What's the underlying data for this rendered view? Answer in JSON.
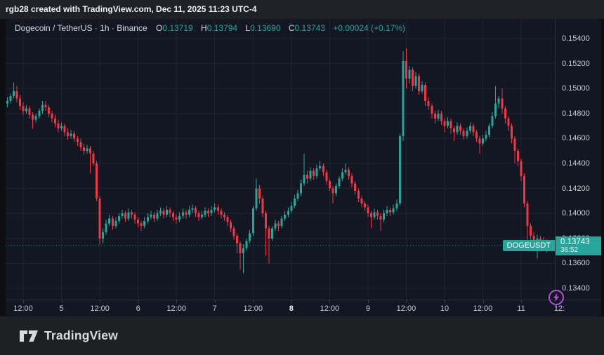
{
  "banner": {
    "text": "rgb28 created with TradingView.com, Dec 11, 2025 11:23 UTC-4"
  },
  "header": {
    "symbol": "Dogecoin / TetherUS",
    "dot": "·",
    "interval": "1h",
    "exchange": "Binance",
    "o_label": "O",
    "o": "0.13719",
    "h_label": "H",
    "h": "0.13794",
    "l_label": "L",
    "l": "0.13690",
    "c_label": "C",
    "c": "0.13743",
    "change": "+0.00024 (+0.17%)"
  },
  "price_line": {
    "label": "DOGEUSDT",
    "value": 0.13743
  },
  "price_scale": {
    "labels": [
      {
        "text": "0.15400",
        "value": 0.154
      },
      {
        "text": "0.15200",
        "value": 0.152
      },
      {
        "text": "0.15000",
        "value": 0.15
      },
      {
        "text": "0.14800",
        "value": 0.148
      },
      {
        "text": "0.14600",
        "value": 0.146
      },
      {
        "text": "0.14400",
        "value": 0.144
      },
      {
        "text": "0.14200",
        "value": 0.142
      },
      {
        "text": "0.14000",
        "value": 0.14
      },
      {
        "text": "0.13800",
        "value": 0.138
      },
      {
        "text": "0.13600",
        "value": 0.136
      },
      {
        "text": "0.13400",
        "value": 0.134
      }
    ],
    "current": {
      "price": "0.13743",
      "countdown": "36:52"
    }
  },
  "time_scale": {
    "labels": [
      {
        "text": "12:00",
        "idx": 5,
        "bold": false
      },
      {
        "text": "5",
        "idx": 17,
        "bold": false
      },
      {
        "text": "12:00",
        "idx": 29,
        "bold": false
      },
      {
        "text": "6",
        "idx": 41,
        "bold": false
      },
      {
        "text": "12:00",
        "idx": 53,
        "bold": false
      },
      {
        "text": "7",
        "idx": 65,
        "bold": false
      },
      {
        "text": "12:00",
        "idx": 77,
        "bold": false
      },
      {
        "text": "8",
        "idx": 89,
        "bold": true
      },
      {
        "text": "12:00",
        "idx": 101,
        "bold": false
      },
      {
        "text": "9",
        "idx": 113,
        "bold": false
      },
      {
        "text": "12:00",
        "idx": 125,
        "bold": false
      },
      {
        "text": "10",
        "idx": 137,
        "bold": false
      },
      {
        "text": "12:00",
        "idx": 149,
        "bold": false
      },
      {
        "text": "11",
        "idx": 161,
        "bold": false
      },
      {
        "text": "12:",
        "idx": 173,
        "bold": false
      }
    ]
  },
  "footer": {
    "brand": "TradingView"
  },
  "colors": {
    "up": "#26a69a",
    "down": "#f23645",
    "accent": "#26a69a",
    "flash": "#b44ce0",
    "grid": "#1e2532"
  },
  "chart_data": {
    "type": "candlestick",
    "title": "Dogecoin / TetherUS",
    "symbol": "DOGEUSDT",
    "interval": "1h",
    "exchange": "Binance",
    "last": {
      "open": 0.13719,
      "high": 0.13794,
      "low": 0.1369,
      "close": 0.13743,
      "change": "+0.00024 (+0.17%)"
    },
    "ylim": [
      0.134,
      0.154
    ],
    "y_ticks": [
      0.154,
      0.152,
      0.15,
      0.148,
      0.146,
      0.144,
      0.142,
      0.14,
      0.138,
      0.136,
      0.134
    ],
    "x_tick_labels": [
      "12:00",
      "5",
      "12:00",
      "6",
      "12:00",
      "7",
      "12:00",
      "8",
      "12:00",
      "9",
      "12:00",
      "10",
      "12:00",
      "11",
      "12:"
    ],
    "current_price": 0.13743,
    "countdown": "36:52",
    "candles": [
      [
        0.1488,
        0.1493,
        0.1485,
        0.149
      ],
      [
        0.149,
        0.1496,
        0.1488,
        0.1494
      ],
      [
        0.1494,
        0.1505,
        0.1492,
        0.1498
      ],
      [
        0.1498,
        0.1502,
        0.1489,
        0.1492
      ],
      [
        0.1492,
        0.1495,
        0.1483,
        0.1486
      ],
      [
        0.1486,
        0.1489,
        0.1479,
        0.1482
      ],
      [
        0.1482,
        0.1487,
        0.148,
        0.1484
      ],
      [
        0.1484,
        0.1486,
        0.1476,
        0.1479
      ],
      [
        0.1479,
        0.1481,
        0.1468,
        0.1475
      ],
      [
        0.1475,
        0.148,
        0.1473,
        0.1478
      ],
      [
        0.1478,
        0.1484,
        0.1476,
        0.1482
      ],
      [
        0.1482,
        0.149,
        0.148,
        0.1487
      ],
      [
        0.1487,
        0.149,
        0.1482,
        0.1485
      ],
      [
        0.1485,
        0.1487,
        0.1477,
        0.148
      ],
      [
        0.148,
        0.1482,
        0.1473,
        0.1476
      ],
      [
        0.1476,
        0.1479,
        0.1469,
        0.1472
      ],
      [
        0.1472,
        0.1475,
        0.1465,
        0.1468
      ],
      [
        0.1468,
        0.1473,
        0.1466,
        0.147
      ],
      [
        0.147,
        0.1472,
        0.1462,
        0.1465
      ],
      [
        0.1465,
        0.1468,
        0.1459,
        0.1462
      ],
      [
        0.1462,
        0.1467,
        0.146,
        0.1464
      ],
      [
        0.1464,
        0.1466,
        0.1457,
        0.146
      ],
      [
        0.146,
        0.1462,
        0.1454,
        0.1457
      ],
      [
        0.1457,
        0.146,
        0.145,
        0.1453
      ],
      [
        0.1453,
        0.1456,
        0.1447,
        0.145
      ],
      [
        0.145,
        0.1455,
        0.1448,
        0.1452
      ],
      [
        0.1452,
        0.1454,
        0.1432,
        0.1448
      ],
      [
        0.1448,
        0.145,
        0.1438,
        0.144
      ],
      [
        0.144,
        0.1442,
        0.141,
        0.1412
      ],
      [
        0.1412,
        0.1414,
        0.1375,
        0.138
      ],
      [
        0.138,
        0.1388,
        0.1376,
        0.1385
      ],
      [
        0.1385,
        0.1395,
        0.1383,
        0.1392
      ],
      [
        0.1392,
        0.1399,
        0.139,
        0.1396
      ],
      [
        0.1396,
        0.1398,
        0.1387,
        0.139
      ],
      [
        0.139,
        0.1397,
        0.1388,
        0.1394
      ],
      [
        0.1394,
        0.14,
        0.1392,
        0.1398
      ],
      [
        0.1398,
        0.1403,
        0.1396,
        0.14
      ],
      [
        0.14,
        0.1402,
        0.1393,
        0.1396
      ],
      [
        0.1396,
        0.1404,
        0.1394,
        0.1401
      ],
      [
        0.1401,
        0.1403,
        0.1396,
        0.1399
      ],
      [
        0.1399,
        0.1401,
        0.1392,
        0.1395
      ],
      [
        0.1395,
        0.1397,
        0.1389,
        0.1392
      ],
      [
        0.1392,
        0.1394,
        0.1386,
        0.139
      ],
      [
        0.139,
        0.1397,
        0.1388,
        0.1394
      ],
      [
        0.1394,
        0.14,
        0.1392,
        0.1397
      ],
      [
        0.1397,
        0.1402,
        0.1395,
        0.1399
      ],
      [
        0.1399,
        0.1401,
        0.1393,
        0.1396
      ],
      [
        0.1396,
        0.1403,
        0.1394,
        0.14
      ],
      [
        0.14,
        0.1405,
        0.1398,
        0.1402
      ],
      [
        0.1402,
        0.1404,
        0.1396,
        0.1399
      ],
      [
        0.1399,
        0.1406,
        0.1397,
        0.1403
      ],
      [
        0.1403,
        0.1405,
        0.1397,
        0.14
      ],
      [
        0.14,
        0.1402,
        0.1394,
        0.1397
      ],
      [
        0.1397,
        0.1399,
        0.1392,
        0.1395
      ],
      [
        0.1395,
        0.1401,
        0.1393,
        0.1398
      ],
      [
        0.1398,
        0.1404,
        0.1396,
        0.1401
      ],
      [
        0.1401,
        0.1403,
        0.1396,
        0.1399
      ],
      [
        0.1399,
        0.1406,
        0.1397,
        0.1403
      ],
      [
        0.1403,
        0.1407,
        0.14,
        0.1404
      ],
      [
        0.1404,
        0.1406,
        0.1397,
        0.14
      ],
      [
        0.14,
        0.1402,
        0.1394,
        0.1397
      ],
      [
        0.1397,
        0.1402,
        0.1395,
        0.1399
      ],
      [
        0.1399,
        0.1405,
        0.1397,
        0.1402
      ],
      [
        0.1402,
        0.1404,
        0.1397,
        0.14
      ],
      [
        0.14,
        0.1406,
        0.1398,
        0.1403
      ],
      [
        0.1403,
        0.1408,
        0.1401,
        0.1405
      ],
      [
        0.1405,
        0.1407,
        0.1399,
        0.1402
      ],
      [
        0.1402,
        0.1404,
        0.1396,
        0.1399
      ],
      [
        0.1399,
        0.1401,
        0.1394,
        0.1397
      ],
      [
        0.1397,
        0.1399,
        0.139,
        0.1393
      ],
      [
        0.1393,
        0.1395,
        0.1385,
        0.1388
      ],
      [
        0.1388,
        0.139,
        0.1379,
        0.1382
      ],
      [
        0.1382,
        0.1384,
        0.1368,
        0.1376
      ],
      [
        0.1376,
        0.1378,
        0.1355,
        0.1368
      ],
      [
        0.1368,
        0.1375,
        0.1352,
        0.1372
      ],
      [
        0.1372,
        0.138,
        0.137,
        0.1378
      ],
      [
        0.1378,
        0.1387,
        0.1376,
        0.1384
      ],
      [
        0.1384,
        0.1406,
        0.1382,
        0.1404
      ],
      [
        0.1404,
        0.1428,
        0.1402,
        0.142
      ],
      [
        0.142,
        0.1423,
        0.1408,
        0.1412
      ],
      [
        0.1412,
        0.1414,
        0.1397,
        0.14
      ],
      [
        0.14,
        0.1402,
        0.1366,
        0.1388
      ],
      [
        0.1388,
        0.139,
        0.136,
        0.138
      ],
      [
        0.138,
        0.139,
        0.1378,
        0.1388
      ],
      [
        0.1388,
        0.1395,
        0.1386,
        0.1392
      ],
      [
        0.1392,
        0.1394,
        0.1386,
        0.139
      ],
      [
        0.139,
        0.1398,
        0.1388,
        0.1396
      ],
      [
        0.1396,
        0.1402,
        0.1394,
        0.1399
      ],
      [
        0.1399,
        0.1405,
        0.1397,
        0.1402
      ],
      [
        0.1402,
        0.1409,
        0.14,
        0.1406
      ],
      [
        0.1406,
        0.1415,
        0.1404,
        0.1412
      ],
      [
        0.1412,
        0.1419,
        0.141,
        0.1416
      ],
      [
        0.1416,
        0.1427,
        0.1414,
        0.1424
      ],
      [
        0.1424,
        0.1448,
        0.1422,
        0.1431
      ],
      [
        0.1431,
        0.1434,
        0.1424,
        0.1428
      ],
      [
        0.1428,
        0.1437,
        0.1426,
        0.1434
      ],
      [
        0.1434,
        0.1436,
        0.1427,
        0.143
      ],
      [
        0.143,
        0.1439,
        0.1428,
        0.1436
      ],
      [
        0.1436,
        0.1442,
        0.1434,
        0.1438
      ],
      [
        0.1438,
        0.144,
        0.143,
        0.1433
      ],
      [
        0.1433,
        0.1435,
        0.1423,
        0.1426
      ],
      [
        0.1426,
        0.1428,
        0.1418,
        0.142
      ],
      [
        0.142,
        0.1422,
        0.1408,
        0.1416
      ],
      [
        0.1416,
        0.1424,
        0.1414,
        0.1422
      ],
      [
        0.1422,
        0.143,
        0.142,
        0.1428
      ],
      [
        0.1428,
        0.1436,
        0.1426,
        0.1433
      ],
      [
        0.1433,
        0.144,
        0.1431,
        0.1435
      ],
      [
        0.1435,
        0.1437,
        0.1427,
        0.143
      ],
      [
        0.143,
        0.1432,
        0.1421,
        0.1424
      ],
      [
        0.1424,
        0.1426,
        0.1415,
        0.1418
      ],
      [
        0.1418,
        0.142,
        0.1409,
        0.1412
      ],
      [
        0.1412,
        0.1414,
        0.1405,
        0.1408
      ],
      [
        0.1408,
        0.141,
        0.1402,
        0.1405
      ],
      [
        0.1405,
        0.1407,
        0.1397,
        0.14
      ],
      [
        0.14,
        0.1402,
        0.1388,
        0.1397
      ],
      [
        0.1397,
        0.1404,
        0.1395,
        0.1401
      ],
      [
        0.1401,
        0.1403,
        0.1395,
        0.1398
      ],
      [
        0.1398,
        0.14,
        0.1386,
        0.1395
      ],
      [
        0.1395,
        0.1403,
        0.1393,
        0.14
      ],
      [
        0.14,
        0.1406,
        0.1398,
        0.1403
      ],
      [
        0.1403,
        0.1405,
        0.1398,
        0.1401
      ],
      [
        0.1401,
        0.1407,
        0.1399,
        0.1404
      ],
      [
        0.1404,
        0.1411,
        0.1402,
        0.1408
      ],
      [
        0.1408,
        0.1464,
        0.1406,
        0.1462
      ],
      [
        0.1462,
        0.153,
        0.1458,
        0.1522
      ],
      [
        0.1522,
        0.1532,
        0.15,
        0.1508
      ],
      [
        0.1508,
        0.1518,
        0.1504,
        0.1515
      ],
      [
        0.1515,
        0.1517,
        0.1498,
        0.1502
      ],
      [
        0.1502,
        0.1513,
        0.15,
        0.151
      ],
      [
        0.151,
        0.1512,
        0.1495,
        0.1498
      ],
      [
        0.1498,
        0.1506,
        0.1496,
        0.1503
      ],
      [
        0.1503,
        0.1505,
        0.1486,
        0.149
      ],
      [
        0.149,
        0.1493,
        0.1483,
        0.1486
      ],
      [
        0.1486,
        0.1488,
        0.1476,
        0.148
      ],
      [
        0.148,
        0.1482,
        0.1472,
        0.1476
      ],
      [
        0.1476,
        0.1483,
        0.1474,
        0.148
      ],
      [
        0.148,
        0.1482,
        0.1471,
        0.1474
      ],
      [
        0.1474,
        0.1476,
        0.1465,
        0.147
      ],
      [
        0.147,
        0.1477,
        0.1468,
        0.1474
      ],
      [
        0.1474,
        0.1476,
        0.1464,
        0.1468
      ],
      [
        0.1468,
        0.147,
        0.1458,
        0.1465
      ],
      [
        0.1465,
        0.1473,
        0.1463,
        0.147
      ],
      [
        0.147,
        0.1472,
        0.1463,
        0.1466
      ],
      [
        0.1466,
        0.1468,
        0.1459,
        0.1462
      ],
      [
        0.1462,
        0.1469,
        0.146,
        0.1466
      ],
      [
        0.1466,
        0.1473,
        0.1464,
        0.147
      ],
      [
        0.147,
        0.1472,
        0.1462,
        0.1465
      ],
      [
        0.1465,
        0.1467,
        0.1457,
        0.146
      ],
      [
        0.146,
        0.1462,
        0.1448,
        0.1456
      ],
      [
        0.1456,
        0.1463,
        0.1454,
        0.146
      ],
      [
        0.146,
        0.1466,
        0.1458,
        0.1463
      ],
      [
        0.1463,
        0.1472,
        0.1461,
        0.147
      ],
      [
        0.147,
        0.1481,
        0.1468,
        0.1478
      ],
      [
        0.1478,
        0.1502,
        0.1476,
        0.1488
      ],
      [
        0.1488,
        0.1494,
        0.1484,
        0.1492
      ],
      [
        0.1492,
        0.15,
        0.148,
        0.1484
      ],
      [
        0.1484,
        0.1486,
        0.1472,
        0.1476
      ],
      [
        0.1476,
        0.1478,
        0.1466,
        0.147
      ],
      [
        0.147,
        0.1472,
        0.1456,
        0.146
      ],
      [
        0.146,
        0.1462,
        0.144,
        0.145
      ],
      [
        0.145,
        0.1452,
        0.1438,
        0.1442
      ],
      [
        0.1442,
        0.1444,
        0.1426,
        0.143
      ],
      [
        0.143,
        0.1432,
        0.1405,
        0.1408
      ],
      [
        0.1408,
        0.141,
        0.1378,
        0.139
      ],
      [
        0.139,
        0.1392,
        0.1379,
        0.1382
      ],
      [
        0.1382,
        0.1385,
        0.1374,
        0.1378
      ],
      [
        0.1378,
        0.1383,
        0.1364,
        0.138
      ],
      [
        0.138,
        0.1382,
        0.1372,
        0.1376
      ],
      [
        0.1376,
        0.1381,
        0.137,
        0.1372
      ],
      [
        0.13719,
        0.13794,
        0.1369,
        0.13743
      ]
    ]
  }
}
